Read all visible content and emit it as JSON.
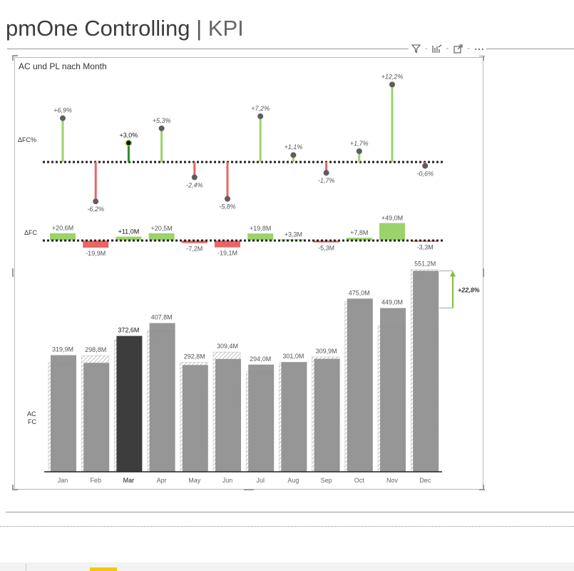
{
  "page": {
    "title_main": "pmOne Controlling",
    "title_sep": "|",
    "title_sub": "KPI"
  },
  "toolbar": {
    "icons": [
      "filter-icon",
      "focus-mode-icon",
      "expand-icon",
      "more-options-icon"
    ]
  },
  "colors": {
    "bar": "#8c8c8c",
    "bar_highlight": "#3d3d3d",
    "fc_outline": "#b8b8b8",
    "positive": "#9bd36a",
    "negative": "#ec6464",
    "lollipop_head": "#5e5e5e",
    "axis": "#222222"
  },
  "chart_data": {
    "type": "bar",
    "title": "AC und PL nach Month",
    "categories": [
      "Jan",
      "Feb",
      "Mar",
      "Apr",
      "May",
      "Jun",
      "Jul",
      "Aug",
      "Sep",
      "Oct",
      "Nov",
      "Dec"
    ],
    "highlighted_category": "Mar",
    "series": [
      {
        "name": "AC",
        "values": [
          319.9,
          298.8,
          372.6,
          407.8,
          292.8,
          309.4,
          294.0,
          301.0,
          309.9,
          475.0,
          449.0,
          551.2
        ]
      },
      {
        "name": "FC",
        "values": [
          299.3,
          318.7,
          361.6,
          387.3,
          300.0,
          328.5,
          274.2,
          297.7,
          315.2,
          467.2,
          400.0,
          554.5
        ]
      }
    ],
    "labels": [
      "319,9M",
      "298,8M",
      "372,6M",
      "407,8M",
      "292,8M",
      "309,4M",
      "294,0M",
      "301,0M",
      "309,9M",
      "475,0M",
      "449,0M",
      "551,2M"
    ],
    "delta_fc": {
      "label": "ΔFC",
      "values": [
        20.6,
        -19.9,
        11.0,
        20.5,
        -7.2,
        -19.1,
        19.8,
        3.3,
        -5.3,
        7.8,
        49.0,
        -3.3
      ],
      "labels": [
        "+20,6M",
        "-19,9M",
        "+11,0M",
        "+20,5M",
        "-7,2M",
        "-19,1M",
        "+19,8M",
        "+3,3M",
        "-5,3M",
        "+7,8M",
        "+49,0M",
        "-3,3M"
      ]
    },
    "delta_fc_pct": {
      "label": "ΔFC%",
      "values": [
        6.9,
        -6.2,
        3.0,
        5.3,
        -2.4,
        -5.8,
        7.2,
        1.1,
        -1.7,
        1.7,
        12.2,
        -0.6
      ],
      "labels": [
        "+6,9%",
        "-6,2%",
        "+3,0%",
        "+5,3%",
        "-2,4%",
        "-5,8%",
        "+7,2%",
        "+1,1%",
        "-1,7%",
        "+1,7%",
        "+12,2%",
        "-0,6%"
      ]
    },
    "axis_labels": [
      "AC",
      "FC"
    ],
    "annotation": "+22,8%",
    "ylim": [
      0,
      560
    ]
  }
}
